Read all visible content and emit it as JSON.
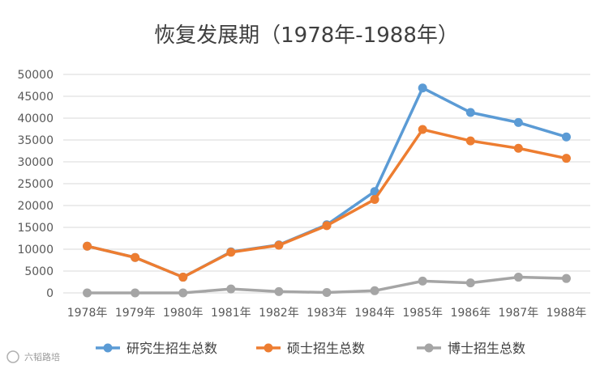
{
  "chart_data": {
    "type": "line",
    "title": "恢复发展期（1978年-1988年）",
    "categories": [
      "1978年",
      "1979年",
      "1980年",
      "1981年",
      "1982年",
      "1983年",
      "1984年",
      "1985年",
      "1986年",
      "1987年",
      "1988年"
    ],
    "ylim": [
      0,
      50000
    ],
    "yticks": [
      0,
      5000,
      10000,
      15000,
      20000,
      25000,
      30000,
      35000,
      40000,
      45000,
      50000
    ],
    "grid": true,
    "legend_position": "bottom",
    "series": [
      {
        "name": "研究生招生总数",
        "color": "#5b9bd5",
        "values": [
          10700,
          8100,
          3600,
          9400,
          11000,
          15600,
          23200,
          46900,
          41300,
          39000,
          35700
        ]
      },
      {
        "name": "硕士招生总数",
        "color": "#ed7d31",
        "values": [
          10700,
          8100,
          3600,
          9300,
          10900,
          15400,
          21400,
          37400,
          34800,
          33100,
          30800
        ]
      },
      {
        "name": "博士招生总数",
        "color": "#a5a5a5",
        "values": [
          0,
          0,
          0,
          900,
          300,
          100,
          500,
          2700,
          2300,
          3600,
          3300
        ]
      }
    ]
  },
  "watermark": {
    "source_mark": "六韬路培"
  }
}
